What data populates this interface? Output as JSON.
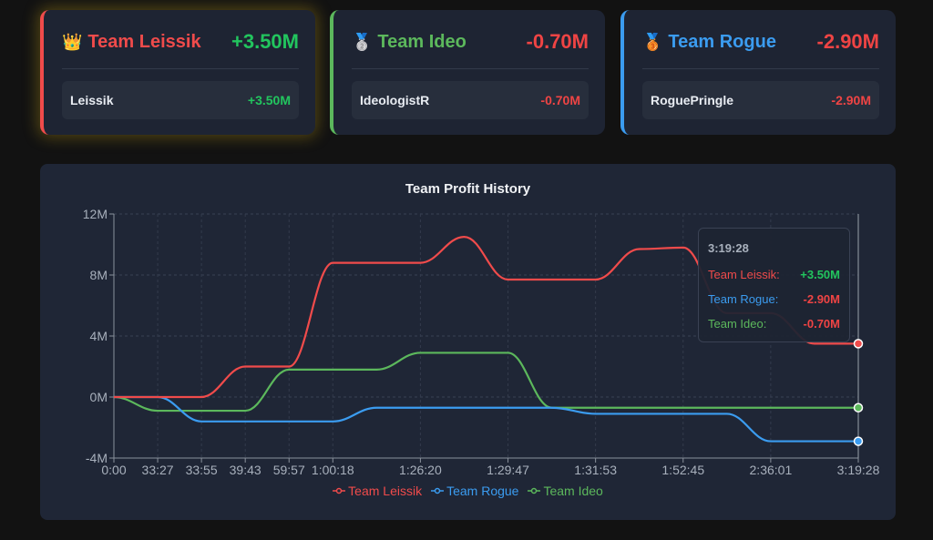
{
  "colors": {
    "leissik": "#f04b4b",
    "ideo": "#5cb85c",
    "rogue": "#3b9cf0",
    "positive": "#22c55e",
    "negative": "#ef4444"
  },
  "teams": [
    {
      "icon": "crown-icon",
      "glyph": "👑",
      "name": "Team Leissik",
      "total": "+3.50M",
      "members": [
        {
          "name": "Leissik",
          "value": "+3.50M"
        }
      ]
    },
    {
      "icon": "silver-medal-icon",
      "glyph": "🥈",
      "name": "Team Ideo",
      "total": "-0.70M",
      "members": [
        {
          "name": "IdeologistR",
          "value": "-0.70M"
        }
      ]
    },
    {
      "icon": "bronze-medal-icon",
      "glyph": "🥉",
      "name": "Team Rogue",
      "total": "-2.90M",
      "members": [
        {
          "name": "RoguePringle",
          "value": "-2.90M"
        }
      ]
    }
  ],
  "chart": {
    "title": "Team Profit History",
    "tooltip": {
      "title": "3:19:28",
      "rows": [
        {
          "label": "Team Leissik:",
          "value": "+3.50M"
        },
        {
          "label": "Team Rogue:",
          "value": "-2.90M"
        },
        {
          "label": "Team Ideo:",
          "value": "-0.70M"
        }
      ]
    },
    "legend": [
      "Team Leissik",
      "Team Rogue",
      "Team Ideo"
    ]
  },
  "chart_data": {
    "type": "line",
    "title": "Team Profit History",
    "xlabel": "",
    "ylabel": "",
    "x_tick_labels": [
      "0:00",
      "33:27",
      "33:55",
      "39:43",
      "59:57",
      "1:00:18",
      "1:26:20",
      "1:29:47",
      "1:31:53",
      "1:52:45",
      "2:36:01",
      "3:19:28"
    ],
    "y_tick_labels": [
      "12M",
      "8M",
      "4M",
      "0M",
      "-4M"
    ],
    "ylim": [
      -4,
      12
    ],
    "y_unit": "M",
    "grid": true,
    "legend_position": "bottom",
    "x_point_count": 18,
    "series": [
      {
        "name": "Team Leissik",
        "color": "#f04b4b",
        "values": [
          0,
          0,
          0,
          2.0,
          2.0,
          8.8,
          8.8,
          8.8,
          10.5,
          7.7,
          7.7,
          7.7,
          9.7,
          9.8,
          5.5,
          5.5,
          3.5,
          3.5
        ]
      },
      {
        "name": "Team Rogue",
        "color": "#3b9cf0",
        "values": [
          0,
          0,
          -1.6,
          -1.6,
          -1.6,
          -1.6,
          -0.7,
          -0.7,
          -0.7,
          -0.7,
          -0.7,
          -1.1,
          -1.1,
          -1.1,
          -1.1,
          -2.9,
          -2.9,
          -2.9
        ]
      },
      {
        "name": "Team Ideo",
        "color": "#5cb85c",
        "values": [
          0,
          -0.9,
          -0.9,
          -0.9,
          1.8,
          1.8,
          1.8,
          2.9,
          2.9,
          2.9,
          -0.7,
          -0.7,
          -0.7,
          -0.7,
          -0.7,
          -0.7,
          -0.7,
          -0.7
        ]
      }
    ]
  }
}
